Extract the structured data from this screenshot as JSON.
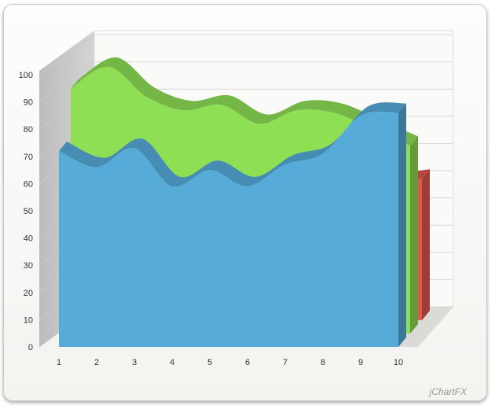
{
  "chart_data": {
    "type": "area",
    "x": [
      1,
      2,
      3,
      4,
      5,
      6,
      7,
      8,
      9,
      10
    ],
    "ylim": [
      0,
      100
    ],
    "yticks": [
      0,
      10,
      20,
      30,
      40,
      50,
      60,
      70,
      80,
      90,
      100
    ],
    "grid": true,
    "three_d": true,
    "smooth": true,
    "series": [
      {
        "color": "#e0584a",
        "values": [
          20,
          24,
          30,
          35,
          38,
          42,
          45,
          47,
          50,
          52
        ]
      },
      {
        "color": "#8fdf55",
        "values": [
          90,
          98,
          87,
          82,
          84,
          77,
          82,
          81,
          75,
          69
        ]
      },
      {
        "color": "#56abd9",
        "values": [
          72,
          66,
          73,
          59,
          65,
          59,
          67,
          71,
          85,
          86
        ]
      }
    ]
  },
  "branding": "jChartFX"
}
